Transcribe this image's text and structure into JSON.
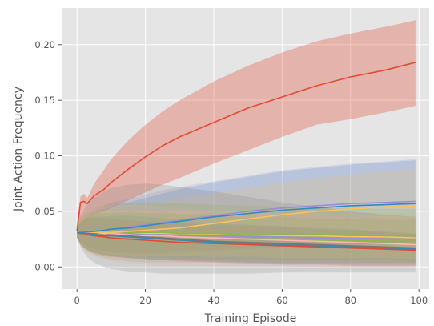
{
  "chart_data": {
    "type": "line",
    "title": "",
    "xlabel": "Training Episode",
    "ylabel": "Joint Action Frequency",
    "xlim": [
      -4.5,
      103
    ],
    "ylim": [
      -0.02,
      0.233
    ],
    "xticks": [
      0,
      20,
      40,
      60,
      80,
      100
    ],
    "xtick_labels": [
      "0",
      "20",
      "40",
      "60",
      "80",
      "100"
    ],
    "yticks": [
      0.0,
      0.05,
      0.1,
      0.15,
      0.2
    ],
    "ytick_labels": [
      "0.00",
      "0.05",
      "0.10",
      "0.15",
      "0.20"
    ],
    "grid": true,
    "legend": "none",
    "x": [
      0,
      1,
      2,
      3,
      5,
      8,
      10,
      15,
      20,
      25,
      30,
      40,
      50,
      60,
      70,
      80,
      90,
      99
    ],
    "series": [
      {
        "color": "#E24A33",
        "values": [
          0.032,
          0.058,
          0.059,
          0.057,
          0.064,
          0.07,
          0.076,
          0.088,
          0.099,
          0.109,
          0.117,
          0.13,
          0.143,
          0.153,
          0.163,
          0.171,
          0.177,
          0.184
        ],
        "band_lower": [
          0.025,
          0.04,
          0.044,
          0.042,
          0.046,
          0.05,
          0.053,
          0.06,
          0.067,
          0.074,
          0.08,
          0.093,
          0.105,
          0.117,
          0.128,
          0.133,
          0.139,
          0.145
        ],
        "band_upper": [
          0.04,
          0.063,
          0.066,
          0.062,
          0.075,
          0.088,
          0.097,
          0.114,
          0.128,
          0.14,
          0.15,
          0.167,
          0.181,
          0.193,
          0.203,
          0.21,
          0.216,
          0.222
        ]
      },
      {
        "color": "#348ABD",
        "values": [
          0.031,
          0.031,
          0.031,
          0.032,
          0.032,
          0.033,
          0.034,
          0.035,
          0.037,
          0.039,
          0.041,
          0.045,
          0.048,
          0.051,
          0.053,
          0.055,
          0.056,
          0.057
        ],
        "band_lower": [
          0.026,
          0.022,
          0.02,
          0.018,
          0.016,
          0.014,
          0.013,
          0.012,
          0.012,
          0.012,
          0.013,
          0.014,
          0.016,
          0.018,
          0.019,
          0.02,
          0.021,
          0.022
        ],
        "band_upper": [
          0.036,
          0.04,
          0.043,
          0.046,
          0.049,
          0.052,
          0.055,
          0.058,
          0.062,
          0.066,
          0.07,
          0.076,
          0.081,
          0.086,
          0.089,
          0.092,
          0.094,
          0.096
        ]
      },
      {
        "color": "#988ED5",
        "values": [
          0.031,
          0.031,
          0.031,
          0.031,
          0.032,
          0.033,
          0.034,
          0.036,
          0.038,
          0.04,
          0.042,
          0.046,
          0.05,
          0.053,
          0.055,
          0.057,
          0.058,
          0.059
        ],
        "band_lower": [
          0.026,
          0.022,
          0.02,
          0.018,
          0.016,
          0.015,
          0.014,
          0.013,
          0.013,
          0.014,
          0.015,
          0.016,
          0.018,
          0.019,
          0.02,
          0.021,
          0.022,
          0.023
        ],
        "band_upper": [
          0.036,
          0.041,
          0.044,
          0.047,
          0.051,
          0.055,
          0.058,
          0.061,
          0.065,
          0.069,
          0.072,
          0.077,
          0.082,
          0.087,
          0.09,
          0.093,
          0.095,
          0.097
        ]
      },
      {
        "color": "#FBC15E",
        "values": [
          0.032,
          0.031,
          0.031,
          0.031,
          0.031,
          0.031,
          0.031,
          0.032,
          0.033,
          0.034,
          0.035,
          0.039,
          0.043,
          0.047,
          0.05,
          0.052,
          0.054,
          0.055
        ],
        "band_lower": [
          0.027,
          0.021,
          0.018,
          0.016,
          0.013,
          0.011,
          0.01,
          0.01,
          0.01,
          0.011,
          0.012,
          0.014,
          0.016,
          0.018,
          0.019,
          0.02,
          0.021,
          0.022
        ],
        "band_upper": [
          0.037,
          0.041,
          0.044,
          0.046,
          0.049,
          0.051,
          0.053,
          0.055,
          0.057,
          0.059,
          0.061,
          0.066,
          0.071,
          0.076,
          0.08,
          0.083,
          0.086,
          0.088
        ]
      },
      {
        "color": "#8EBA42",
        "values": [
          0.032,
          0.032,
          0.032,
          0.032,
          0.032,
          0.032,
          0.032,
          0.031,
          0.031,
          0.031,
          0.03,
          0.03,
          0.029,
          0.029,
          0.029,
          0.029,
          0.028,
          0.028
        ],
        "band_lower": [
          0.027,
          0.02,
          0.017,
          0.014,
          0.011,
          0.008,
          0.007,
          0.005,
          0.004,
          0.004,
          0.004,
          0.004,
          0.004,
          0.004,
          0.004,
          0.004,
          0.004,
          0.004
        ],
        "band_upper": [
          0.037,
          0.044,
          0.047,
          0.05,
          0.053,
          0.056,
          0.057,
          0.058,
          0.058,
          0.058,
          0.057,
          0.056,
          0.055,
          0.054,
          0.053,
          0.053,
          0.052,
          0.052
        ]
      },
      {
        "color": "#FFB5B8",
        "values": [
          0.032,
          0.032,
          0.032,
          0.031,
          0.031,
          0.03,
          0.03,
          0.029,
          0.028,
          0.028,
          0.027,
          0.026,
          0.025,
          0.024,
          0.023,
          0.022,
          0.021,
          0.02
        ],
        "band_lower": [
          0.027,
          0.02,
          0.016,
          0.013,
          0.01,
          0.007,
          0.005,
          0.003,
          0.002,
          0.001,
          0.001,
          0.001,
          0.001,
          0.001,
          0.0,
          0.0,
          0.0,
          0.0
        ],
        "band_upper": [
          0.037,
          0.044,
          0.048,
          0.05,
          0.053,
          0.055,
          0.056,
          0.056,
          0.055,
          0.054,
          0.053,
          0.051,
          0.049,
          0.048,
          0.046,
          0.045,
          0.044,
          0.043
        ]
      },
      {
        "color": "#777777",
        "values": [
          0.032,
          0.031,
          0.031,
          0.031,
          0.03,
          0.03,
          0.029,
          0.028,
          0.027,
          0.026,
          0.025,
          0.023,
          0.022,
          0.021,
          0.02,
          0.019,
          0.018,
          0.017
        ],
        "band_lower": [
          0.027,
          0.018,
          0.013,
          0.009,
          0.004,
          0.0,
          -0.002,
          -0.004,
          -0.005,
          -0.006,
          -0.006,
          -0.006,
          -0.006,
          -0.005,
          -0.005,
          -0.005,
          -0.005,
          -0.005
        ],
        "band_upper": [
          0.037,
          0.046,
          0.051,
          0.056,
          0.062,
          0.068,
          0.071,
          0.074,
          0.075,
          0.074,
          0.072,
          0.068,
          0.063,
          0.058,
          0.054,
          0.05,
          0.047,
          0.045
        ]
      },
      {
        "color": "#E24A33",
        "values": [
          0.031,
          0.03,
          0.03,
          0.029,
          0.028,
          0.027,
          0.026,
          0.025,
          0.024,
          0.023,
          0.022,
          0.021,
          0.02,
          0.019,
          0.018,
          0.017,
          0.016,
          0.015
        ],
        "band_lower": [
          0.026,
          0.02,
          0.017,
          0.015,
          0.012,
          0.01,
          0.009,
          0.008,
          0.007,
          0.006,
          0.005,
          0.004,
          0.003,
          0.002,
          0.002,
          0.001,
          0.001,
          0.001
        ],
        "band_upper": [
          0.036,
          0.04,
          0.043,
          0.043,
          0.044,
          0.044,
          0.043,
          0.042,
          0.041,
          0.04,
          0.039,
          0.038,
          0.037,
          0.036,
          0.034,
          0.033,
          0.031,
          0.029
        ]
      },
      {
        "color": "#348ABD",
        "values": [
          0.031,
          0.03,
          0.03,
          0.03,
          0.029,
          0.028,
          0.028,
          0.027,
          0.026,
          0.025,
          0.024,
          0.022,
          0.021,
          0.02,
          0.019,
          0.018,
          0.017,
          0.016
        ],
        "band_lower": [
          0.026,
          0.021,
          0.018,
          0.016,
          0.013,
          0.011,
          0.01,
          0.008,
          0.007,
          0.006,
          0.006,
          0.005,
          0.004,
          0.003,
          0.003,
          0.002,
          0.002,
          0.002
        ],
        "band_upper": [
          0.036,
          0.039,
          0.042,
          0.044,
          0.045,
          0.045,
          0.046,
          0.046,
          0.045,
          0.044,
          0.042,
          0.039,
          0.038,
          0.037,
          0.035,
          0.034,
          0.032,
          0.03
        ]
      },
      {
        "color": "#988ED5",
        "values": [
          0.032,
          0.032,
          0.031,
          0.031,
          0.031,
          0.03,
          0.03,
          0.03,
          0.029,
          0.029,
          0.028,
          0.028,
          0.027,
          0.027,
          0.026,
          0.026,
          0.025,
          0.025
        ],
        "band_lower": [
          0.027,
          0.021,
          0.018,
          0.016,
          0.014,
          0.012,
          0.011,
          0.01,
          0.009,
          0.008,
          0.008,
          0.007,
          0.007,
          0.006,
          0.006,
          0.006,
          0.006,
          0.006
        ],
        "band_upper": [
          0.037,
          0.043,
          0.044,
          0.046,
          0.048,
          0.048,
          0.049,
          0.05,
          0.049,
          0.05,
          0.048,
          0.049,
          0.047,
          0.048,
          0.046,
          0.046,
          0.044,
          0.044
        ]
      },
      {
        "color": "#FBC15E",
        "values": [
          0.032,
          0.032,
          0.031,
          0.031,
          0.031,
          0.031,
          0.031,
          0.03,
          0.03,
          0.03,
          0.03,
          0.029,
          0.029,
          0.028,
          0.028,
          0.027,
          0.027,
          0.026
        ],
        "band_lower": [
          0.027,
          0.021,
          0.018,
          0.016,
          0.014,
          0.012,
          0.011,
          0.01,
          0.01,
          0.01,
          0.01,
          0.009,
          0.009,
          0.008,
          0.008,
          0.008,
          0.008,
          0.007
        ],
        "band_upper": [
          0.037,
          0.043,
          0.044,
          0.046,
          0.048,
          0.05,
          0.051,
          0.05,
          0.05,
          0.05,
          0.05,
          0.049,
          0.049,
          0.048,
          0.048,
          0.046,
          0.046,
          0.045
        ]
      },
      {
        "color": "#8EBA42",
        "values": [
          0.031,
          0.031,
          0.031,
          0.03,
          0.03,
          0.03,
          0.029,
          0.029,
          0.028,
          0.028,
          0.027,
          0.026,
          0.025,
          0.025,
          0.024,
          0.024,
          0.023,
          0.023
        ],
        "band_lower": [
          0.026,
          0.02,
          0.017,
          0.015,
          0.013,
          0.011,
          0.01,
          0.009,
          0.008,
          0.008,
          0.007,
          0.006,
          0.006,
          0.005,
          0.005,
          0.005,
          0.004,
          0.004
        ],
        "band_upper": [
          0.036,
          0.042,
          0.045,
          0.045,
          0.047,
          0.049,
          0.048,
          0.049,
          0.048,
          0.048,
          0.047,
          0.046,
          0.044,
          0.045,
          0.043,
          0.043,
          0.042,
          0.042
        ]
      }
    ]
  }
}
